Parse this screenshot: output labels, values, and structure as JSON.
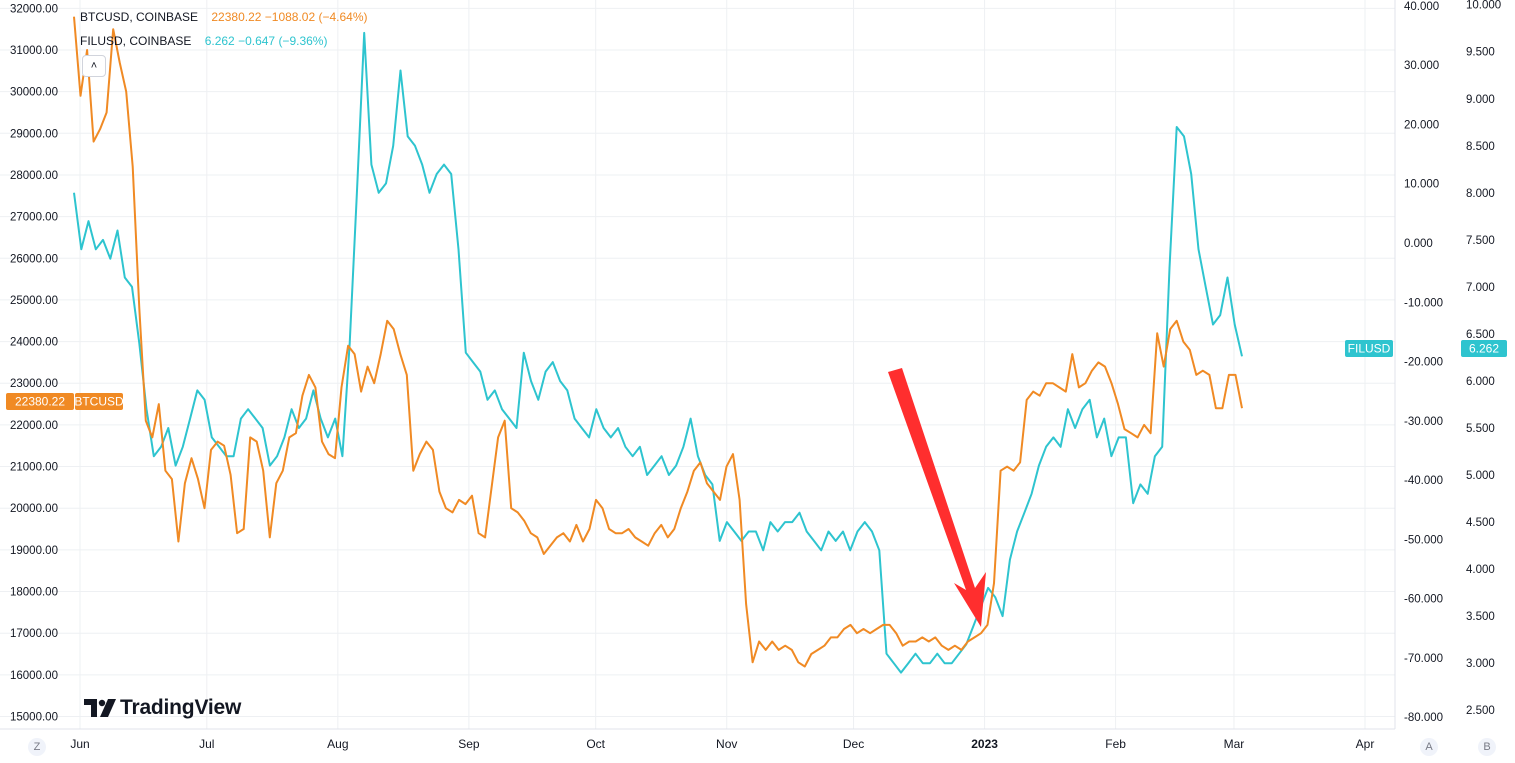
{
  "legend": {
    "btc": {
      "symbol": "BTCUSD, COINBASE",
      "values": "22380.22  −1088.02 (−4.64%)"
    },
    "fil": {
      "symbol": "FILUSD, COINBASE",
      "values": "6.262  −0.647 (−9.36%)"
    }
  },
  "price_tags": {
    "btc_value": "22380.22",
    "btc_label": "BTCUSD",
    "fil_label": "FILUSD",
    "fil_value": "6.262"
  },
  "collapse_glyph": "˄",
  "branding": "TradingView",
  "corner_buttons": {
    "left": "Z",
    "a": "A",
    "b": "B"
  },
  "colors": {
    "btc": "#f08a24",
    "fil": "#2ec4cf",
    "arrow": "#ff2e2e",
    "grid": "#eef0f3",
    "axis_text": "#131722"
  },
  "chart_data": {
    "type": "line",
    "x_ticks": [
      "Jun",
      "Jul",
      "Aug",
      "Sep",
      "Oct",
      "Nov",
      "Dec",
      "2023",
      "Feb",
      "Mar",
      "Apr"
    ],
    "left_axis": {
      "ticks": [
        32000,
        31000,
        30000,
        29000,
        28000,
        27000,
        26000,
        25000,
        24000,
        23000,
        22000,
        21000,
        20000,
        19000,
        18000,
        17000,
        16000,
        15000
      ],
      "range": [
        14700,
        32200
      ]
    },
    "middle_axis": {
      "ticks": [
        40,
        30,
        20,
        10,
        0,
        -10,
        -20,
        -30,
        -40,
        -50,
        -60,
        -70,
        -80
      ],
      "range": [
        -82,
        41
      ]
    },
    "right_axis": {
      "ticks": [
        10,
        9.5,
        9,
        8.5,
        8,
        7.5,
        7,
        6.5,
        6,
        5.5,
        5,
        4.5,
        4,
        3.5,
        3,
        2.5
      ],
      "range": [
        2.3,
        10.05
      ]
    },
    "series": [
      {
        "name": "BTCUSD",
        "axis": "left",
        "color": "#f08a24",
        "values": [
          31800,
          29900,
          31000,
          28800,
          29100,
          29500,
          31500,
          30700,
          30000,
          28200,
          24800,
          22100,
          21700,
          22500,
          20900,
          20700,
          19200,
          20600,
          21200,
          20700,
          20000,
          21400,
          21600,
          21500,
          20800,
          19400,
          19500,
          21700,
          21600,
          20900,
          19300,
          20600,
          20900,
          21700,
          21800,
          22700,
          23200,
          22900,
          21600,
          21300,
          21200,
          22900,
          23900,
          23700,
          22800,
          23400,
          23000,
          23700,
          24500,
          24300,
          23700,
          23200,
          20900,
          21300,
          21600,
          21400,
          20400,
          20000,
          19900,
          20200,
          20100,
          20300,
          19400,
          19300,
          20500,
          21700,
          22100,
          20000,
          19900,
          19700,
          19400,
          19300,
          18900,
          19100,
          19300,
          19400,
          19200,
          19600,
          19200,
          19500,
          20200,
          20000,
          19500,
          19400,
          19400,
          19500,
          19300,
          19200,
          19100,
          19400,
          19600,
          19300,
          19500,
          20000,
          20400,
          20900,
          21100,
          20600,
          20400,
          20200,
          21000,
          21300,
          20200,
          17700,
          16300,
          16800,
          16600,
          16800,
          16600,
          16700,
          16600,
          16300,
          16200,
          16500,
          16600,
          16700,
          16900,
          16900,
          17100,
          17200,
          17000,
          17100,
          17000,
          17100,
          17200,
          17200,
          17000,
          16700,
          16800,
          16800,
          16900,
          16800,
          16900,
          16700,
          16600,
          16700,
          16600,
          16800,
          16900,
          17000,
          17200,
          18200,
          20900,
          21000,
          20900,
          21100,
          22600,
          22800,
          22700,
          23000,
          23000,
          22900,
          22800,
          23700,
          22900,
          23000,
          23300,
          23500,
          23400,
          23000,
          22500,
          21900,
          21800,
          21700,
          22000,
          21800,
          24200,
          23400,
          24300,
          24500,
          24000,
          23800,
          23200,
          23300,
          23200,
          22400,
          22400,
          23200,
          23200,
          22400
        ],
        "notes": "approximate daily closes, Jun 2022 – early Mar 2023"
      },
      {
        "name": "FILUSD",
        "axis": "right",
        "color": "#2ec4cf",
        "values": [
          8.0,
          7.4,
          7.7,
          7.4,
          7.5,
          7.3,
          7.6,
          7.1,
          7.0,
          6.4,
          5.7,
          5.2,
          5.3,
          5.5,
          5.1,
          5.3,
          5.6,
          5.9,
          5.8,
          5.4,
          5.3,
          5.2,
          5.2,
          5.6,
          5.7,
          5.6,
          5.5,
          5.1,
          5.2,
          5.4,
          5.7,
          5.5,
          5.6,
          5.9,
          5.6,
          5.4,
          5.6,
          5.2,
          6.4,
          8.0,
          9.7,
          8.3,
          8.0,
          8.1,
          8.5,
          9.3,
          8.6,
          8.5,
          8.3,
          8.0,
          8.2,
          8.3,
          8.2,
          7.4,
          6.3,
          6.2,
          6.1,
          5.8,
          5.9,
          5.7,
          5.6,
          5.5,
          6.3,
          6.0,
          5.8,
          6.1,
          6.2,
          6.0,
          5.9,
          5.6,
          5.5,
          5.4,
          5.7,
          5.5,
          5.4,
          5.5,
          5.3,
          5.2,
          5.3,
          5.0,
          5.1,
          5.2,
          5.0,
          5.1,
          5.3,
          5.6,
          5.2,
          5.0,
          4.9,
          4.3,
          4.5,
          4.4,
          4.3,
          4.4,
          4.4,
          4.2,
          4.5,
          4.4,
          4.5,
          4.5,
          4.6,
          4.4,
          4.3,
          4.2,
          4.4,
          4.3,
          4.4,
          4.2,
          4.4,
          4.5,
          4.4,
          4.2,
          3.1,
          3.0,
          2.9,
          3.0,
          3.1,
          3.0,
          3.0,
          3.1,
          3.0,
          3.0,
          3.1,
          3.2,
          3.4,
          3.6,
          3.8,
          3.7,
          3.5,
          4.1,
          4.4,
          4.6,
          4.8,
          5.1,
          5.3,
          5.4,
          5.3,
          5.7,
          5.5,
          5.7,
          5.8,
          5.4,
          5.6,
          5.2,
          5.4,
          5.4,
          4.7,
          4.9,
          4.8,
          5.2,
          5.3,
          7.2,
          8.7,
          8.6,
          8.2,
          7.4,
          7.0,
          6.6,
          6.7,
          7.1,
          6.6,
          6.262
        ],
        "notes": "approximate daily closes, Jun 2022 – early Mar 2023"
      }
    ],
    "annotation": {
      "type": "arrow",
      "color": "#ff2e2e"
    },
    "grid": true
  }
}
